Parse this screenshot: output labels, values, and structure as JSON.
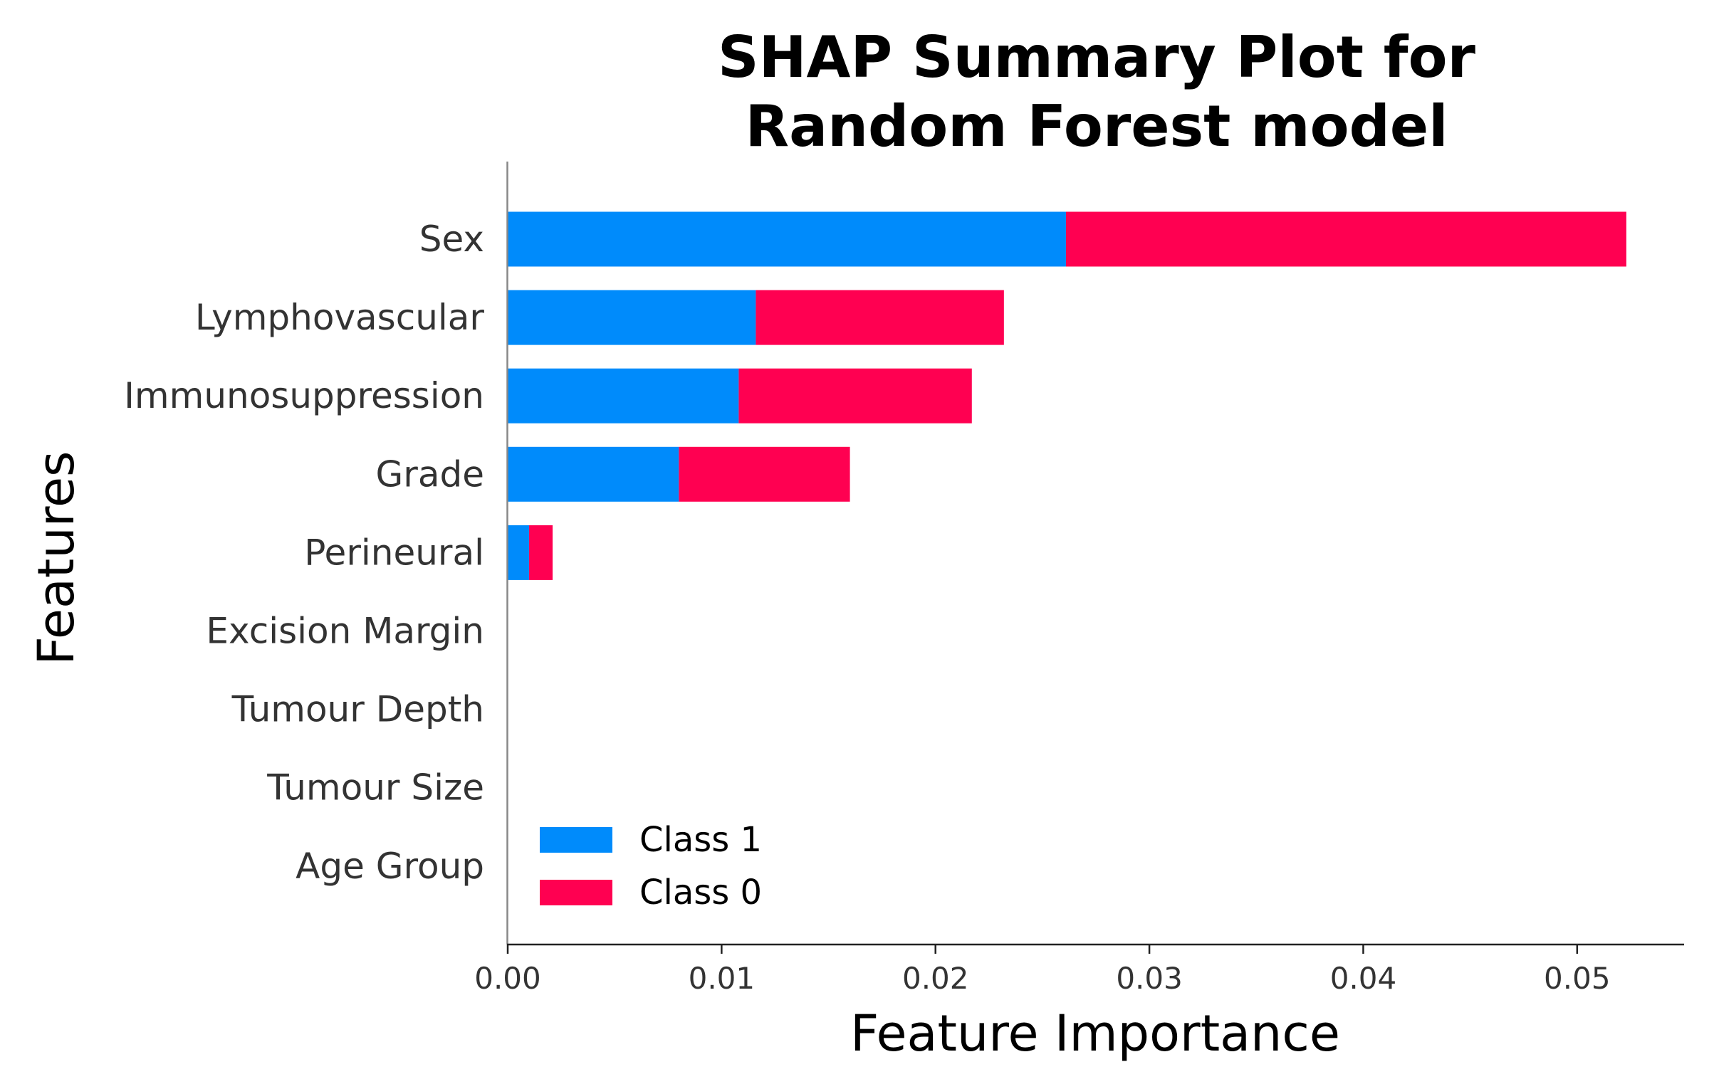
{
  "chart_data": {
    "type": "bar",
    "orientation": "horizontal",
    "stacked": true,
    "title": [
      "SHAP Summary Plot for",
      "Random Forest model"
    ],
    "xlabel": "Feature Importance",
    "ylabel": "Features",
    "categories": [
      "Sex",
      "Lymphovascular",
      "Immunosuppression",
      "Grade",
      "Perineural",
      "Excision Margin",
      "Tumour Depth",
      "Tumour Size",
      "Age Group"
    ],
    "series": [
      {
        "name": "Class 1",
        "color": "#008bfb",
        "values": [
          0.0261,
          0.0116,
          0.0108,
          0.008,
          0.001,
          0.0,
          0.0,
          0.0,
          0.0
        ]
      },
      {
        "name": "Class 0",
        "color": "#ff0051",
        "values": [
          0.0262,
          0.0116,
          0.0109,
          0.008,
          0.0011,
          0.0,
          0.0,
          0.0,
          0.0
        ]
      }
    ],
    "xlim": [
      0,
      0.055
    ],
    "xticks": [
      0.0,
      0.01,
      0.02,
      0.03,
      0.04,
      0.05
    ],
    "xtick_labels": [
      "0.00",
      "0.01",
      "0.02",
      "0.03",
      "0.04",
      "0.05"
    ],
    "legend_position": "lower-left",
    "grid": false
  }
}
